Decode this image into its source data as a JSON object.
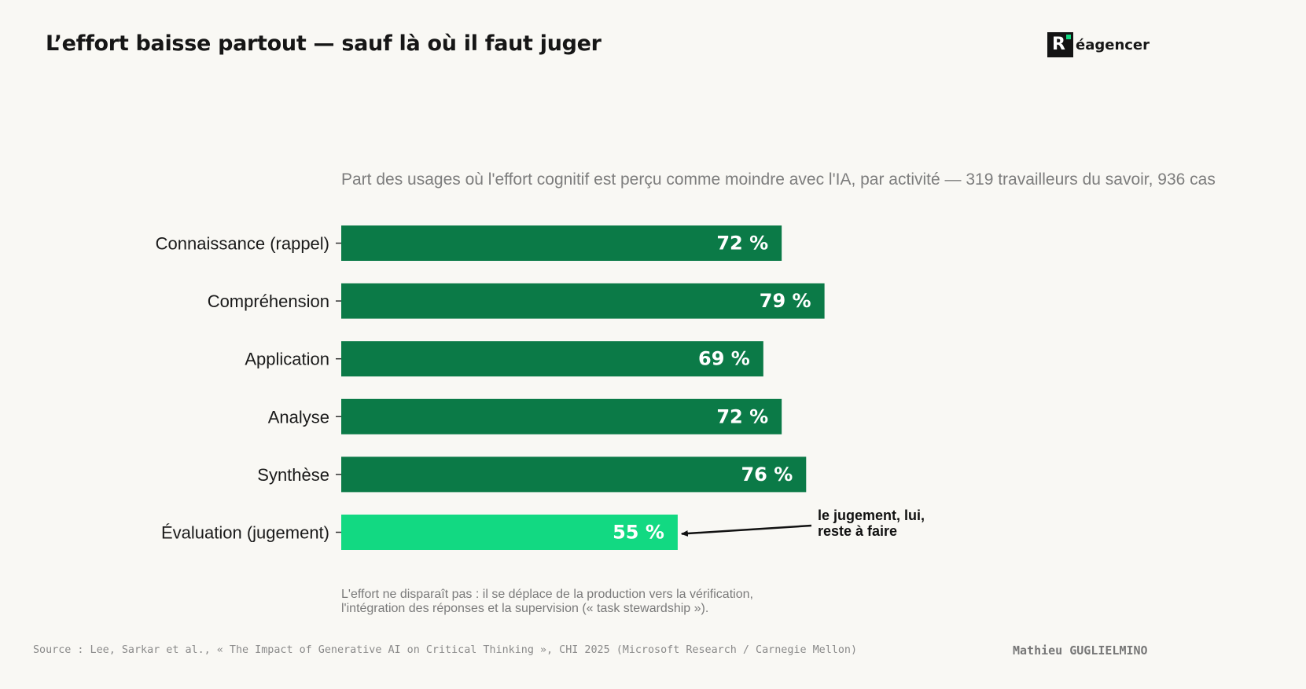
{
  "header": {
    "title": "L’effort baisse partout — sauf là où il faut juger"
  },
  "logo": {
    "mark": "R",
    "text": "éagencer",
    "accent_color": "#12d982"
  },
  "chart_data": {
    "type": "bar",
    "orientation": "horizontal",
    "title": "L’effort baisse partout — sauf là où il faut juger",
    "subtitle": "Part des usages où l'effort cognitif est perçu comme moindre avec l'IA, par activité — 319 travailleurs du savoir, 936 cas",
    "categories": [
      "Connaissance (rappel)",
      "Compréhension",
      "Application",
      "Analyse",
      "Synthèse",
      "Évaluation (jugement)"
    ],
    "values": [
      72,
      79,
      69,
      72,
      76,
      55
    ],
    "value_labels": [
      "72 %",
      "79 %",
      "69 %",
      "72 %",
      "76 %",
      "55 %"
    ],
    "unit": "%",
    "colors": {
      "default": "#0b7a47",
      "highlight": "#12d982"
    },
    "highlight_index": 5,
    "xlim": [
      0,
      100
    ],
    "grid": false,
    "legend": "none",
    "annotation": {
      "target_index": 5,
      "lines": [
        "le jugement, lui,",
        "reste à faire"
      ]
    }
  },
  "note": {
    "lines": [
      "L'effort ne disparaît pas : il se déplace de la production vers la vérification,",
      "l'intégration des réponses et la supervision (« task stewardship »)."
    ]
  },
  "footer": {
    "source": "Source : Lee, Sarkar et al., « The Impact of Generative AI on Critical Thinking », CHI 2025 (Microsoft Research / Carnegie Mellon)",
    "author": "Mathieu GUGLIELMINO"
  }
}
